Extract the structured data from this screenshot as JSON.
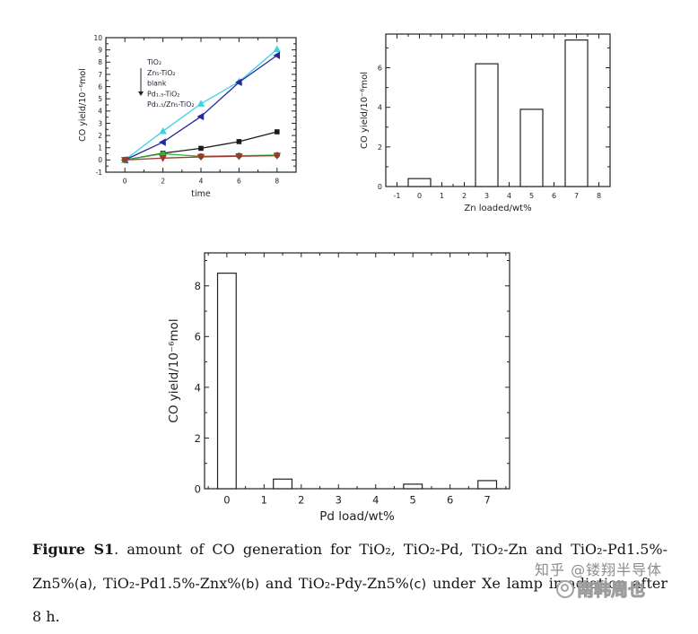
{
  "figure": {
    "caption": {
      "parts": [
        {
          "text": "Figure S1",
          "bold": true
        },
        {
          "text": ". amount of CO generation for TiO₂, TiO₂-Pd, TiO₂-Zn and TiO₂-Pd1.5%-Zn5%"
        },
        {
          "text": "(a)",
          "sans": true
        },
        {
          "text": ", TiO₂-Pd1.5%-Znx%"
        },
        {
          "text": "(b)",
          "sans": true
        },
        {
          "text": " and TiO₂-Pdy-Zn5%"
        },
        {
          "text": "(c)",
          "sans": true
        },
        {
          "text": " under Xe lamp irradiation after 8 h."
        }
      ]
    }
  },
  "watermark": {
    "zhihu_prefix": "知乎 ",
    "zhihu_handle": "@镂翔半导体",
    "weibo_name": "南韩周也",
    "logo": "weibo-eye-icon"
  },
  "chart_data": [
    {
      "id": "chartA",
      "type": "line",
      "title": "",
      "xlabel": "time",
      "ylabel": "CO yield/10⁻⁶mol",
      "xlim": [
        -1,
        9
      ],
      "ylim": [
        -1,
        10
      ],
      "xticks": [
        0,
        2,
        4,
        6,
        8
      ],
      "yticks": [
        -1,
        0,
        1,
        2,
        3,
        4,
        5,
        6,
        7,
        8,
        9,
        10
      ],
      "xminor_step": 1,
      "yminor_step": 0.5,
      "grid": false,
      "legend_position": "upper-left-with-down-arrow",
      "x": [
        0,
        2,
        4,
        6,
        8
      ],
      "series": [
        {
          "name": "TiO₂",
          "color": "#3fd2e2",
          "marker": "triangle-up",
          "values": [
            0,
            2.35,
            4.6,
            6.4,
            9.05
          ]
        },
        {
          "name": "Zn₅-TiO₂",
          "color": "#28289c",
          "marker": "triangle-left",
          "values": [
            0,
            1.45,
            3.55,
            6.35,
            8.55
          ]
        },
        {
          "name": "blank",
          "color": "#1a1a1a",
          "marker": "square",
          "values": [
            0,
            0.55,
            0.95,
            1.5,
            2.3
          ]
        },
        {
          "name": "Pd₁.₅-TiO₂",
          "color": "#3cb23c",
          "marker": "circle",
          "values": [
            0,
            0.5,
            0.3,
            0.35,
            0.4
          ]
        },
        {
          "name": "Pd₁.₅/Zn₅-TiO₂",
          "color": "#9c3a2c",
          "marker": "triangle-down",
          "values": [
            0,
            0.15,
            0.25,
            0.3,
            0.35
          ]
        }
      ]
    },
    {
      "id": "chartB",
      "type": "bar",
      "title": "",
      "xlabel": "Zn loaded/wt%",
      "ylabel": "CO yield/10⁻⁶mol",
      "xlim": [
        -1.5,
        8.5
      ],
      "ylim": [
        0,
        7.7
      ],
      "xticks": [
        -1,
        0,
        1,
        2,
        3,
        4,
        5,
        6,
        7,
        8
      ],
      "yticks": [
        0,
        2,
        4,
        6
      ],
      "xminor_step": 0.5,
      "yminor_step": 1,
      "grid": false,
      "bar_width": 1,
      "bar_fill": "#ffffff",
      "bar_stroke": "#222222",
      "bars": [
        {
          "x": 0,
          "value": 0.4
        },
        {
          "x": 3,
          "value": 6.2
        },
        {
          "x": 5,
          "value": 3.9
        },
        {
          "x": 7,
          "value": 7.4
        }
      ]
    },
    {
      "id": "chartC",
      "type": "bar",
      "title": "",
      "xlabel": "Pd load/wt%",
      "ylabel": "CO yield/10⁻⁶mol",
      "xlim": [
        -0.6,
        7.6
      ],
      "ylim": [
        0,
        9.3
      ],
      "xticks": [
        0,
        1,
        2,
        3,
        4,
        5,
        6,
        7
      ],
      "yticks": [
        0,
        2,
        4,
        6,
        8
      ],
      "xminor_step": 0.5,
      "yminor_step": 1,
      "grid": false,
      "bar_width": 0.5,
      "bar_fill": "#ffffff",
      "bar_stroke": "#222222",
      "bars": [
        {
          "x": 0,
          "value": 8.5
        },
        {
          "x": 1.5,
          "value": 0.38
        },
        {
          "x": 5,
          "value": 0.18
        },
        {
          "x": 7,
          "value": 0.32
        }
      ]
    }
  ]
}
